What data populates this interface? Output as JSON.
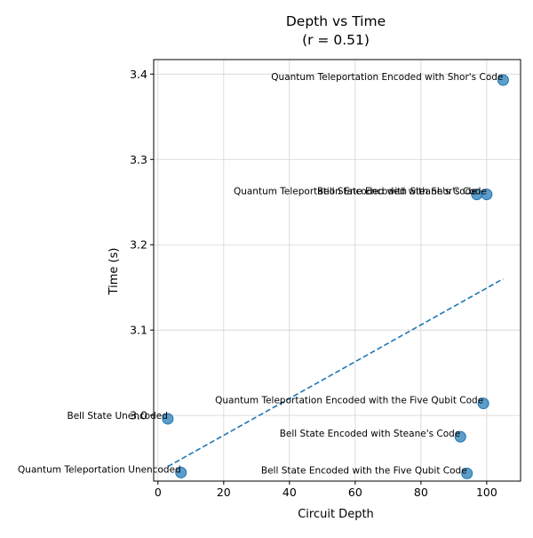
{
  "chart_data": {
    "type": "scatter",
    "title": "Depth vs Time",
    "subtitle": "(r = 0.51)",
    "xlabel": "Circuit Depth",
    "ylabel": "Time (s)",
    "xlim": [
      -1.3,
      110.3
    ],
    "ylim": [
      2.923,
      3.417
    ],
    "xticks": [
      0,
      20,
      40,
      60,
      80,
      100
    ],
    "xtick_labels": [
      "0",
      "20",
      "40",
      "60",
      "80",
      "100"
    ],
    "yticks": [
      3.0,
      3.1,
      3.2,
      3.3,
      3.4
    ],
    "ytick_labels": [
      "3.0",
      "3.1",
      "3.2",
      "3.3",
      "3.4"
    ],
    "grid": true,
    "legend": "none",
    "colors": {
      "points": "#1f77b4",
      "trend": "#1f77b4",
      "grid": "#d3d3d3"
    },
    "points": [
      {
        "label": "Quantum Teleportation Encoded with Shor's Code",
        "x": 105,
        "y": 3.393
      },
      {
        "label": "Quantum Teleportation Encoded with Steane's Code",
        "x": 97,
        "y": 3.259
      },
      {
        "label": "Bell State Encoded with Shor's Code",
        "x": 100,
        "y": 3.259
      },
      {
        "label": "Quantum Teleportation Encoded with the Five Qubit Code",
        "x": 99,
        "y": 3.014
      },
      {
        "label": "Bell State Unencoded",
        "x": 3,
        "y": 2.996
      },
      {
        "label": "Bell State Encoded with Steane's Code",
        "x": 92,
        "y": 2.975
      },
      {
        "label": "Quantum Teleportation Unencoded",
        "x": 7,
        "y": 2.933
      },
      {
        "label": "Bell State Encoded with the Five Qubit Code",
        "x": 94,
        "y": 2.932
      }
    ],
    "trend_line": {
      "style": "dashed",
      "x": [
        3,
        105
      ],
      "y": [
        2.94,
        3.16
      ]
    }
  }
}
